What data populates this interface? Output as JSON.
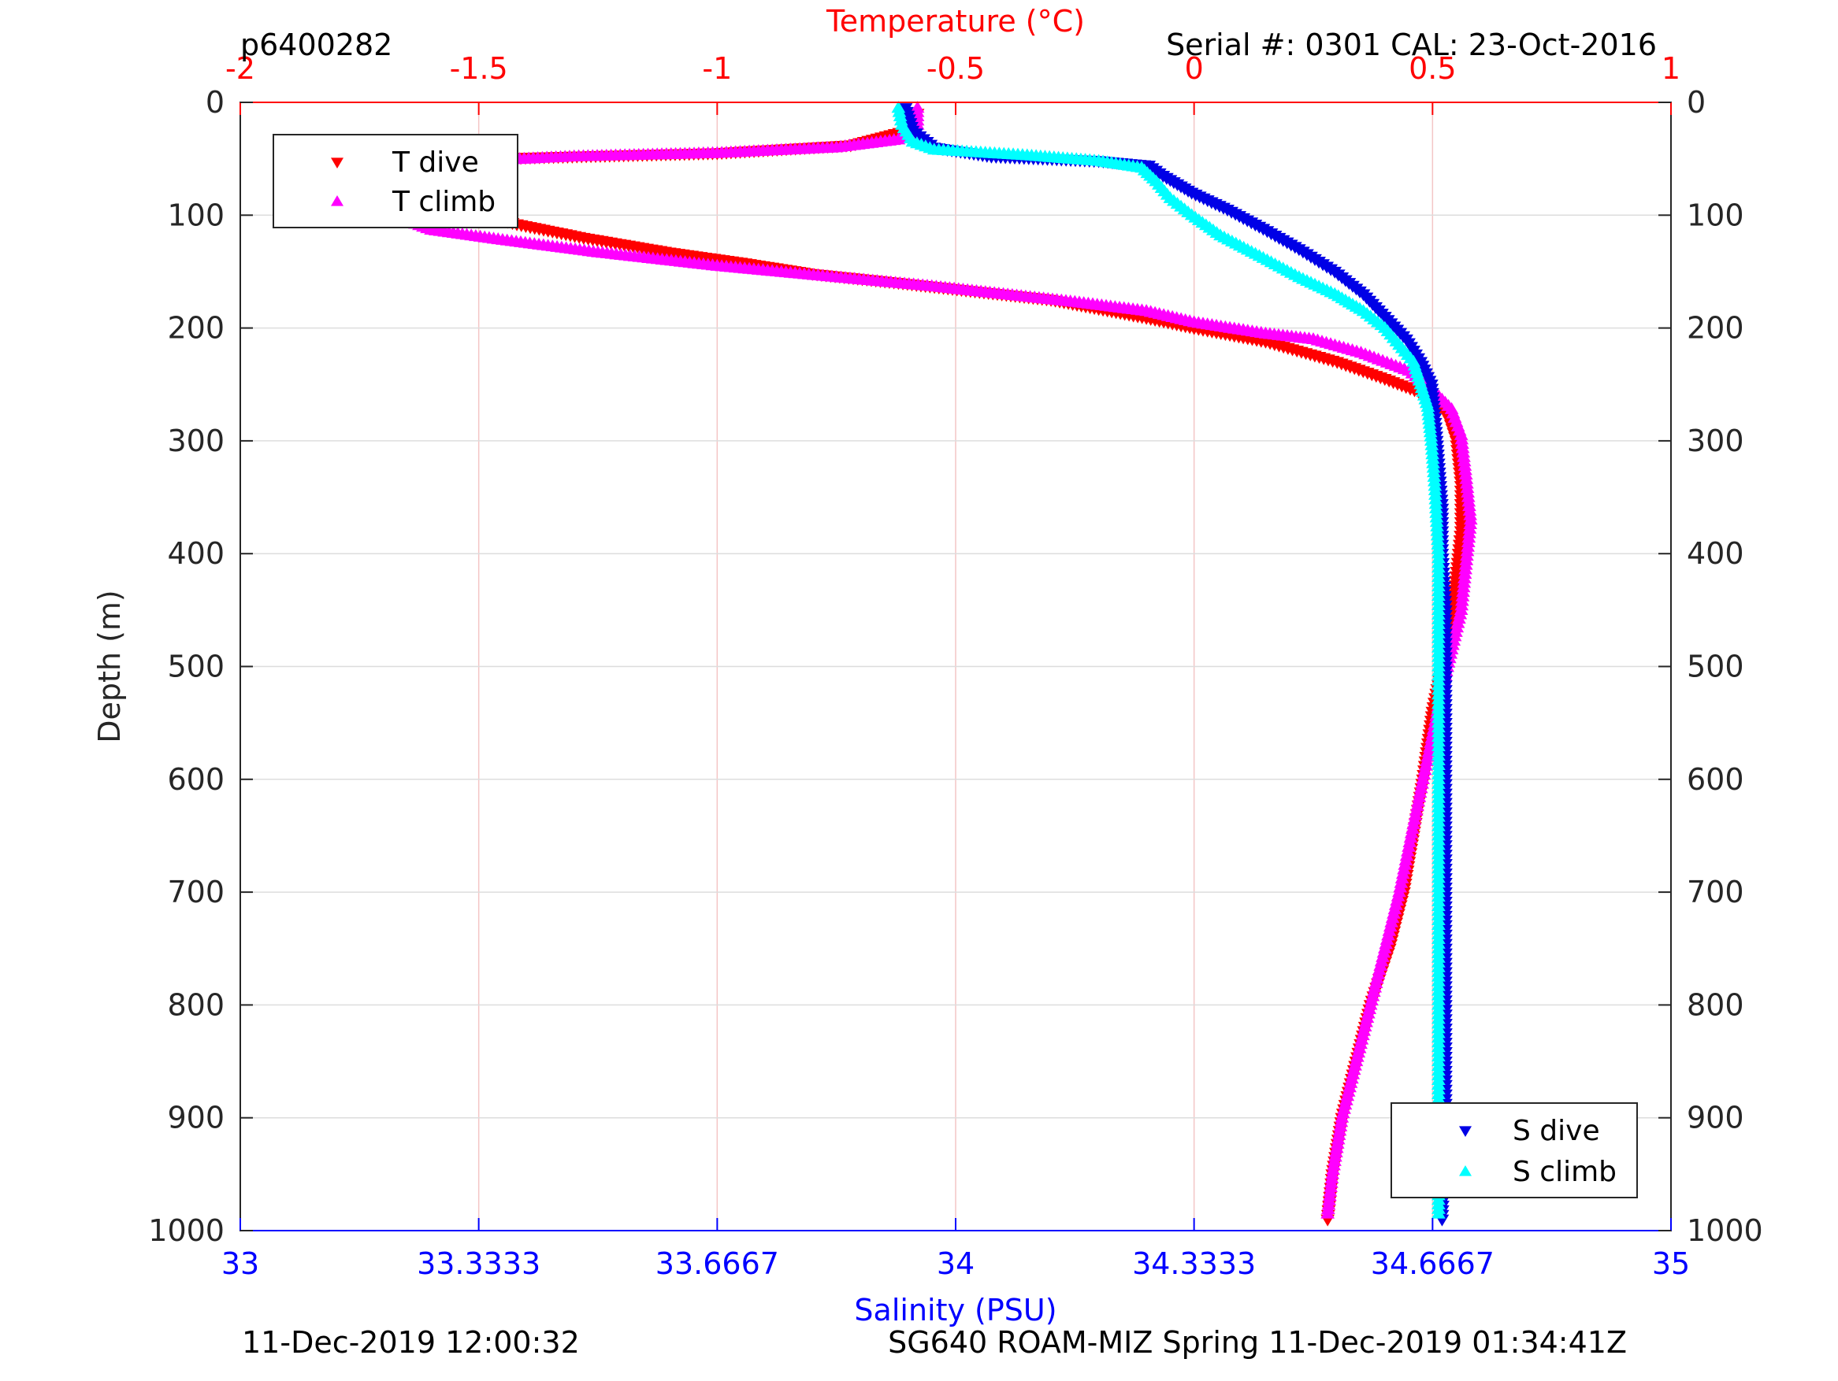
{
  "header": {
    "profile_id": "p6400282",
    "serial": "Serial #: 0301  CAL: 23-Oct-2016"
  },
  "footer": {
    "left": "11-Dec-2019 12:00:32",
    "right": "SG640 ROAM-MIZ Spring 11-Dec-2019 01:34:41Z"
  },
  "colors": {
    "temperature_axis": "#ff0000",
    "salinity_axis": "#0000ff",
    "t_dive": "#ff0000",
    "t_climb": "#ff00ff",
    "s_dive": "#0000e6",
    "s_climb": "#00ffff",
    "grid_temperature": "#f4c6c6",
    "grid_depth": "#dddddd"
  },
  "chart_data": {
    "type": "scatter",
    "top_axis": {
      "label": "Temperature (°C)",
      "range": [
        -2,
        1
      ],
      "ticks": [
        -2,
        -1.5,
        -1,
        -0.5,
        0,
        0.5,
        1
      ],
      "tick_labels": [
        "-2",
        "-1.5",
        "-1",
        "-0.5",
        "0",
        "0.5",
        "1"
      ]
    },
    "bottom_axis": {
      "label": "Salinity (PSU)",
      "range": [
        33,
        35
      ],
      "ticks": [
        33,
        33.3333,
        33.6667,
        34,
        34.3333,
        34.6667,
        35
      ],
      "tick_labels": [
        "33",
        "33.3333",
        "33.6667",
        "34",
        "34.3333",
        "34.6667",
        "35"
      ]
    },
    "y_axis": {
      "label": "Depth (m)",
      "range": [
        0,
        1000
      ],
      "reversed": true,
      "ticks": [
        0,
        100,
        200,
        300,
        400,
        500,
        600,
        700,
        800,
        900,
        1000
      ],
      "tick_labels": [
        "0",
        "100",
        "200",
        "300",
        "400",
        "500",
        "600",
        "700",
        "800",
        "900",
        "1000"
      ]
    },
    "grid": true,
    "legends": [
      {
        "placement": "top-left",
        "entries": [
          "T dive",
          "T climb"
        ]
      },
      {
        "placement": "bottom-right",
        "entries": [
          "S dive",
          "S climb"
        ]
      }
    ],
    "series": [
      {
        "name": "T dive",
        "axis": "temperature",
        "marker": "triangle-down",
        "color": "#ff0000",
        "points": [
          [
            -0.58,
            10
          ],
          [
            -0.6,
            25
          ],
          [
            -0.72,
            38
          ],
          [
            -1.0,
            45
          ],
          [
            -1.5,
            50
          ],
          [
            -1.7,
            53
          ],
          [
            -1.72,
            60
          ],
          [
            -1.72,
            70
          ],
          [
            -1.65,
            80
          ],
          [
            -1.55,
            92
          ],
          [
            -1.42,
            108
          ],
          [
            -1.28,
            120
          ],
          [
            -1.1,
            133
          ],
          [
            -0.95,
            142
          ],
          [
            -0.8,
            152
          ],
          [
            -0.62,
            160
          ],
          [
            -0.45,
            168
          ],
          [
            -0.3,
            175
          ],
          [
            -0.2,
            183
          ],
          [
            -0.1,
            191
          ],
          [
            0.0,
            200
          ],
          [
            0.15,
            212
          ],
          [
            0.3,
            230
          ],
          [
            0.4,
            245
          ],
          [
            0.48,
            258
          ],
          [
            0.53,
            275
          ],
          [
            0.55,
            300
          ],
          [
            0.56,
            340
          ],
          [
            0.56,
            380
          ],
          [
            0.55,
            420
          ],
          [
            0.54,
            460
          ],
          [
            0.52,
            500
          ],
          [
            0.5,
            540
          ],
          [
            0.48,
            600
          ],
          [
            0.46,
            650
          ],
          [
            0.44,
            700
          ],
          [
            0.41,
            750
          ],
          [
            0.37,
            800
          ],
          [
            0.34,
            850
          ],
          [
            0.31,
            900
          ],
          [
            0.29,
            950
          ],
          [
            0.28,
            990
          ]
        ]
      },
      {
        "name": "T climb",
        "axis": "temperature",
        "marker": "triangle-up",
        "color": "#ff00ff",
        "points": [
          [
            -0.58,
            5
          ],
          [
            -0.58,
            20
          ],
          [
            -0.62,
            33
          ],
          [
            -0.75,
            40
          ],
          [
            -1.0,
            45
          ],
          [
            -1.3,
            48
          ],
          [
            -1.5,
            52
          ],
          [
            -1.6,
            62
          ],
          [
            -1.66,
            75
          ],
          [
            -1.66,
            90
          ],
          [
            -1.65,
            105
          ],
          [
            -1.6,
            113
          ],
          [
            -1.45,
            122
          ],
          [
            -1.25,
            133
          ],
          [
            -1.0,
            145
          ],
          [
            -0.75,
            155
          ],
          [
            -0.55,
            163
          ],
          [
            -0.4,
            170
          ],
          [
            -0.25,
            177
          ],
          [
            -0.1,
            185
          ],
          [
            0.0,
            195
          ],
          [
            0.15,
            205
          ],
          [
            0.25,
            210
          ],
          [
            0.35,
            222
          ],
          [
            0.45,
            238
          ],
          [
            0.5,
            255
          ],
          [
            0.54,
            272
          ],
          [
            0.56,
            295
          ],
          [
            0.57,
            330
          ],
          [
            0.58,
            370
          ],
          [
            0.57,
            410
          ],
          [
            0.56,
            450
          ],
          [
            0.54,
            485
          ],
          [
            0.52,
            520
          ],
          [
            0.5,
            560
          ],
          [
            0.48,
            600
          ],
          [
            0.45,
            660
          ],
          [
            0.43,
            700
          ],
          [
            0.4,
            750
          ],
          [
            0.37,
            800
          ],
          [
            0.34,
            850
          ],
          [
            0.31,
            900
          ],
          [
            0.29,
            950
          ],
          [
            0.28,
            985
          ]
        ]
      },
      {
        "name": "S dive",
        "axis": "salinity",
        "marker": "triangle-down",
        "color": "#0000e6",
        "points": [
          [
            33.93,
            5
          ],
          [
            33.94,
            25
          ],
          [
            33.97,
            40
          ],
          [
            34.05,
            48
          ],
          [
            34.2,
            52
          ],
          [
            34.27,
            56
          ],
          [
            34.29,
            65
          ],
          [
            34.33,
            80
          ],
          [
            34.38,
            95
          ],
          [
            34.43,
            112
          ],
          [
            34.48,
            130
          ],
          [
            34.53,
            150
          ],
          [
            34.57,
            170
          ],
          [
            34.6,
            190
          ],
          [
            34.63,
            210
          ],
          [
            34.65,
            230
          ],
          [
            34.665,
            250
          ],
          [
            34.67,
            280
          ],
          [
            34.675,
            320
          ],
          [
            34.68,
            360
          ],
          [
            34.68,
            400
          ],
          [
            34.685,
            450
          ],
          [
            34.685,
            500
          ],
          [
            34.685,
            600
          ],
          [
            34.685,
            700
          ],
          [
            34.685,
            800
          ],
          [
            34.685,
            900
          ],
          [
            34.68,
            990
          ]
        ]
      },
      {
        "name": "S climb",
        "axis": "salinity",
        "marker": "triangle-up",
        "color": "#00ffff",
        "points": [
          [
            33.92,
            5
          ],
          [
            33.925,
            20
          ],
          [
            33.94,
            35
          ],
          [
            33.97,
            42
          ],
          [
            34.1,
            47
          ],
          [
            34.2,
            52
          ],
          [
            34.26,
            58
          ],
          [
            34.28,
            70
          ],
          [
            34.3,
            85
          ],
          [
            34.33,
            100
          ],
          [
            34.37,
            118
          ],
          [
            34.43,
            138
          ],
          [
            34.48,
            155
          ],
          [
            34.53,
            170
          ],
          [
            34.57,
            185
          ],
          [
            34.6,
            200
          ],
          [
            34.62,
            215
          ],
          [
            34.64,
            230
          ],
          [
            34.65,
            250
          ],
          [
            34.66,
            270
          ],
          [
            34.665,
            300
          ],
          [
            34.67,
            340
          ],
          [
            34.675,
            400
          ],
          [
            34.675,
            500
          ],
          [
            34.675,
            600
          ],
          [
            34.675,
            700
          ],
          [
            34.675,
            800
          ],
          [
            34.675,
            900
          ],
          [
            34.675,
            985
          ]
        ]
      }
    ]
  }
}
